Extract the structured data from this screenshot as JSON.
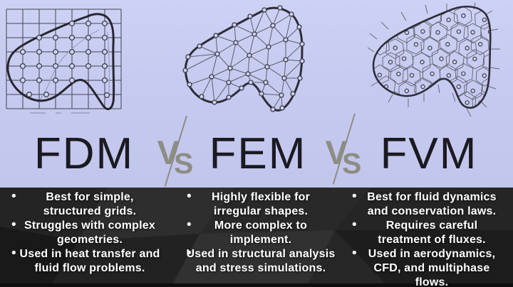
{
  "title": {
    "items": [
      "FDM",
      "FEM",
      "FVM"
    ],
    "vs_v": "V",
    "vs_s": "S"
  },
  "hero": {
    "diagrams": [
      {
        "method": "FDM",
        "mesh": "structured rectangular grid with nodes over an irregular domain"
      },
      {
        "method": "FEM",
        "mesh": "unstructured triangular element mesh conforming to an irregular domain"
      },
      {
        "method": "FVM",
        "mesh": "polygonal finite-volume cells with cell-center nodes"
      }
    ]
  },
  "comparison": {
    "bullet_glyph": "•",
    "columns": [
      {
        "method": "FDM",
        "bullets": [
          "Best for simple,\nstructured grids.",
          "Struggles with complex\ngeometries.",
          "Used in heat transfer and\nfluid flow problems."
        ]
      },
      {
        "method": "FEM",
        "bullets": [
          "Highly flexible for\nirregular shapes.",
          "More complex to\nimplement.",
          "Used in structural analysis\nand stress simulations."
        ]
      },
      {
        "method": "FVM",
        "bullets": [
          "Best for fluid dynamics\nand conservation laws.",
          "Requires careful\ntreatment of fluxes.",
          "Used in aerodynamics,\nCFD, and multiphase\nflows."
        ]
      }
    ]
  },
  "colors": {
    "hero_background": "#c6caf0",
    "dark_background": "#2b2b2b",
    "title_text": "#1a1a20",
    "vs_gray": "#8d8d84",
    "bullet_text": "#ffffff"
  }
}
